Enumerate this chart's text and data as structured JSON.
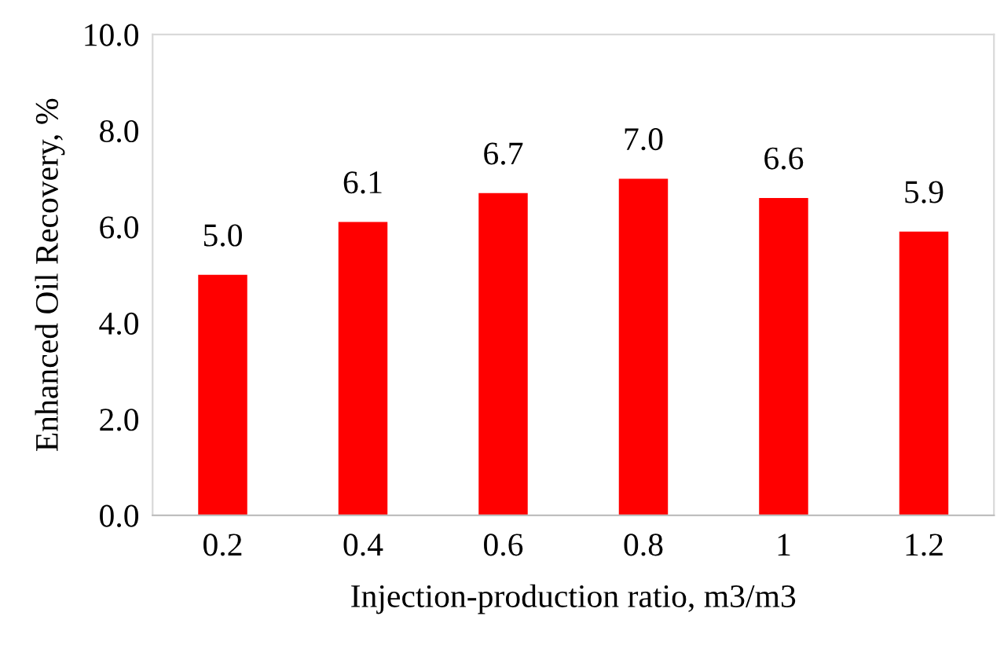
{
  "chart_data": {
    "type": "bar",
    "xlabel": "Injection-production ratio, m3/m3",
    "ylabel": "Enhanced Oil Recovery, %",
    "categories": [
      "0.2",
      "0.4",
      "0.6",
      "0.8",
      "1",
      "1.2"
    ],
    "values": [
      5.0,
      6.1,
      6.7,
      7.0,
      6.6,
      5.9
    ],
    "value_labels": [
      "5.0",
      "6.1",
      "6.7",
      "7.0",
      "6.6",
      "5.9"
    ],
    "color": "#ff0000",
    "ylim": [
      0,
      10
    ],
    "yticks": [
      {
        "value": 0,
        "label": "0.0"
      },
      {
        "value": 2,
        "label": "2.0"
      },
      {
        "value": 4,
        "label": "4.0"
      },
      {
        "value": 6,
        "label": "6.0"
      },
      {
        "value": 8,
        "label": "8.0"
      },
      {
        "value": 10,
        "label": "10.0"
      }
    ],
    "grid": false,
    "legend": false
  }
}
